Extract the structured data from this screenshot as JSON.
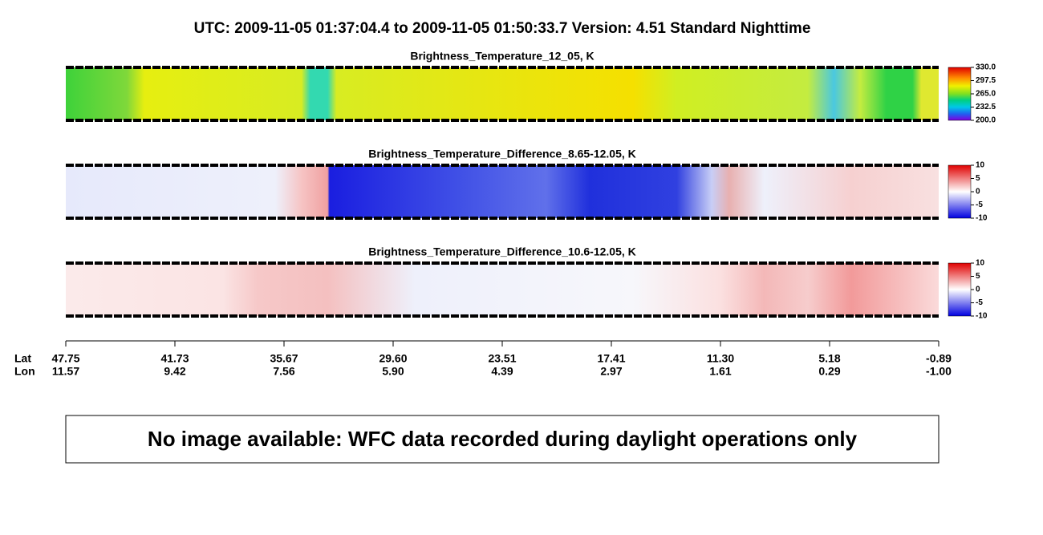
{
  "title": "UTC:  2009-11-05   01:37:04.4  to  2009-11-05   01:50:33.7    Version: 4.51  Standard Nighttime",
  "panels": [
    {
      "title": "Brightness_Temperature_12_05, K",
      "colorbar_ticks": [
        "330.0",
        "297.5",
        "265.0",
        "232.5",
        "200.0"
      ]
    },
    {
      "title": "Brightness_Temperature_Difference_8.65-12.05, K",
      "colorbar_ticks": [
        "10",
        "5",
        "0",
        "-5",
        "-10"
      ]
    },
    {
      "title": "Brightness_Temperature_Difference_10.6-12.05, K",
      "colorbar_ticks": [
        "10",
        "5",
        "0",
        "-5",
        "-10"
      ]
    }
  ],
  "axis": {
    "lat_label": "Lat",
    "lon_label": "Lon",
    "lat": [
      "47.75",
      "41.73",
      "35.67",
      "29.60",
      "23.51",
      "17.41",
      "11.30",
      "5.18",
      "-0.89"
    ],
    "lon": [
      "11.57",
      "9.42",
      "7.56",
      "5.90",
      "4.39",
      "2.97",
      "1.61",
      "0.29",
      "-1.00"
    ]
  },
  "notice": "No image available: WFC data recorded during daylight operations only"
}
